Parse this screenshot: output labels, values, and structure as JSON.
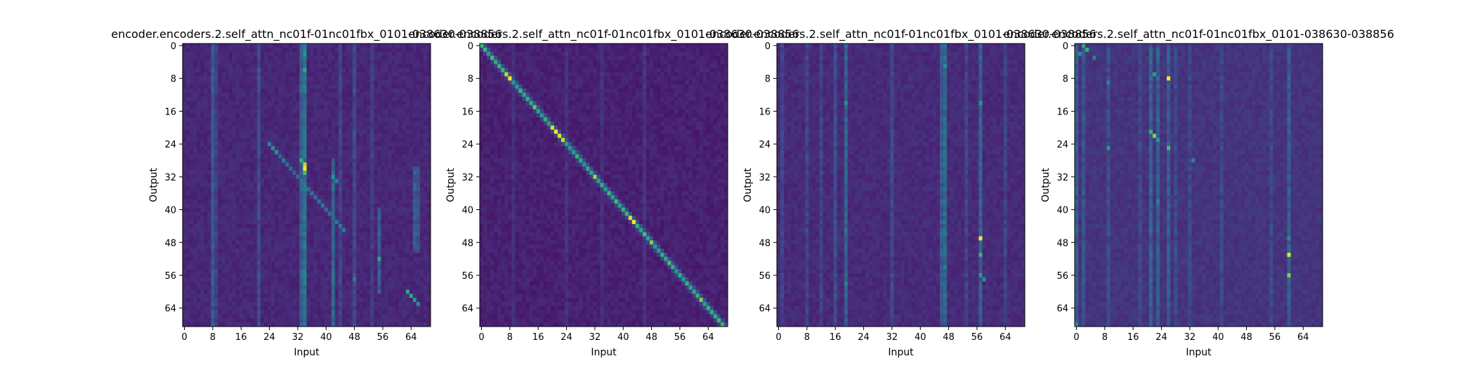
{
  "chart_data": [
    {
      "type": "heatmap",
      "title": "encoder.encoders.2.self_attn_nc01f-01nc01fbx_0101-038630-038856",
      "xlabel": "Input",
      "ylabel": "Output",
      "x_ticks": [
        0,
        8,
        16,
        24,
        32,
        40,
        48,
        56,
        64
      ],
      "y_ticks": [
        0,
        8,
        16,
        24,
        32,
        40,
        48,
        56,
        64
      ],
      "n_input": 70,
      "n_output": 69,
      "colormap": "viridis",
      "value_range": [
        0,
        1
      ],
      "base_level": 0.08,
      "column_bands": [
        {
          "col": 8,
          "from": 0,
          "to": 68,
          "value": 0.28
        },
        {
          "col": 9,
          "from": 0,
          "to": 68,
          "value": 0.18
        },
        {
          "col": 21,
          "from": 0,
          "to": 68,
          "value": 0.24
        },
        {
          "col": 33,
          "from": 0,
          "to": 68,
          "value": 0.32
        },
        {
          "col": 34,
          "from": 0,
          "to": 68,
          "value": 0.42
        },
        {
          "col": 42,
          "from": 28,
          "to": 68,
          "value": 0.34
        },
        {
          "col": 44,
          "from": 0,
          "to": 68,
          "value": 0.2
        },
        {
          "col": 48,
          "from": 0,
          "to": 68,
          "value": 0.22
        },
        {
          "col": 53,
          "from": 0,
          "to": 68,
          "value": 0.18
        },
        {
          "col": 55,
          "from": 40,
          "to": 60,
          "value": 0.3
        },
        {
          "col": 65,
          "from": 30,
          "to": 50,
          "value": 0.3
        },
        {
          "col": 66,
          "from": 30,
          "to": 50,
          "value": 0.26
        }
      ],
      "diagonal_band": {
        "offset": 0,
        "from": 24,
        "to": 45,
        "value": 0.32
      },
      "hotspots": [
        {
          "row": 2,
          "col": 34,
          "value": 0.55
        },
        {
          "row": 6,
          "col": 34,
          "value": 0.6
        },
        {
          "row": 25,
          "col": 25,
          "value": 0.5
        },
        {
          "row": 26,
          "col": 26,
          "value": 0.55
        },
        {
          "row": 28,
          "col": 33,
          "value": 0.65
        },
        {
          "row": 29,
          "col": 34,
          "value": 0.9
        },
        {
          "row": 30,
          "col": 34,
          "value": 1.0
        },
        {
          "row": 31,
          "col": 34,
          "value": 0.7
        },
        {
          "row": 32,
          "col": 42,
          "value": 0.55
        },
        {
          "row": 33,
          "col": 43,
          "value": 0.45
        },
        {
          "row": 52,
          "col": 55,
          "value": 0.6
        },
        {
          "row": 57,
          "col": 48,
          "value": 0.45
        },
        {
          "row": 60,
          "col": 63,
          "value": 0.6
        },
        {
          "row": 61,
          "col": 64,
          "value": 0.6
        },
        {
          "row": 62,
          "col": 65,
          "value": 0.55
        },
        {
          "row": 63,
          "col": 66,
          "value": 0.5
        }
      ]
    },
    {
      "type": "heatmap",
      "title": "encoder.encoders.2.self_attn_nc01f-01nc01fbx_0101-038630-038856",
      "xlabel": "Input",
      "ylabel": "Output",
      "x_ticks": [
        0,
        8,
        16,
        24,
        32,
        40,
        48,
        56,
        64
      ],
      "y_ticks": [
        0,
        8,
        16,
        24,
        32,
        40,
        48,
        56,
        64
      ],
      "n_input": 70,
      "n_output": 69,
      "colormap": "viridis",
      "value_range": [
        0,
        1
      ],
      "base_level": 0.06,
      "column_bands": [
        {
          "col": 9,
          "from": 0,
          "to": 68,
          "value": 0.12
        },
        {
          "col": 24,
          "from": 0,
          "to": 68,
          "value": 0.12
        },
        {
          "col": 34,
          "from": 0,
          "to": 68,
          "value": 0.12
        },
        {
          "col": 46,
          "from": 0,
          "to": 68,
          "value": 0.14
        }
      ],
      "diagonal_band": {
        "offset": 0,
        "from": 0,
        "to": 68,
        "value": 0.55
      },
      "hotspots": [
        {
          "row": 7,
          "col": 7,
          "value": 0.9
        },
        {
          "row": 8,
          "col": 8,
          "value": 1.0
        },
        {
          "row": 15,
          "col": 15,
          "value": 0.75
        },
        {
          "row": 20,
          "col": 20,
          "value": 0.95
        },
        {
          "row": 21,
          "col": 21,
          "value": 1.0
        },
        {
          "row": 22,
          "col": 22,
          "value": 0.95
        },
        {
          "row": 23,
          "col": 23,
          "value": 0.9
        },
        {
          "row": 32,
          "col": 32,
          "value": 0.85
        },
        {
          "row": 42,
          "col": 42,
          "value": 0.95
        },
        {
          "row": 43,
          "col": 43,
          "value": 1.0
        },
        {
          "row": 48,
          "col": 48,
          "value": 0.8
        },
        {
          "row": 53,
          "col": 53,
          "value": 0.7
        },
        {
          "row": 62,
          "col": 62,
          "value": 0.8
        }
      ]
    },
    {
      "type": "heatmap",
      "title": "encoder.encoders.2.self_attn_nc01f-01nc01fbx_0101-038630-038856",
      "xlabel": "Input",
      "ylabel": "Output",
      "x_ticks": [
        0,
        8,
        16,
        24,
        32,
        40,
        48,
        56,
        64
      ],
      "y_ticks": [
        0,
        8,
        16,
        24,
        32,
        40,
        48,
        56,
        64
      ],
      "n_input": 70,
      "n_output": 69,
      "colormap": "viridis",
      "value_range": [
        0,
        1
      ],
      "base_level": 0.09,
      "column_bands": [
        {
          "col": 1,
          "from": 0,
          "to": 68,
          "value": 0.2
        },
        {
          "col": 8,
          "from": 0,
          "to": 68,
          "value": 0.2
        },
        {
          "col": 12,
          "from": 0,
          "to": 68,
          "value": 0.2
        },
        {
          "col": 16,
          "from": 0,
          "to": 68,
          "value": 0.24
        },
        {
          "col": 19,
          "from": 0,
          "to": 68,
          "value": 0.32
        },
        {
          "col": 32,
          "from": 0,
          "to": 68,
          "value": 0.22
        },
        {
          "col": 46,
          "from": 0,
          "to": 68,
          "value": 0.3
        },
        {
          "col": 47,
          "from": 0,
          "to": 68,
          "value": 0.36
        },
        {
          "col": 53,
          "from": 0,
          "to": 68,
          "value": 0.2
        },
        {
          "col": 57,
          "from": 0,
          "to": 68,
          "value": 0.32
        },
        {
          "col": 64,
          "from": 0,
          "to": 68,
          "value": 0.2
        }
      ],
      "diagonal_band": null,
      "hotspots": [
        {
          "row": 5,
          "col": 47,
          "value": 0.5
        },
        {
          "row": 14,
          "col": 19,
          "value": 0.5
        },
        {
          "row": 14,
          "col": 57,
          "value": 0.55
        },
        {
          "row": 47,
          "col": 57,
          "value": 1.0
        },
        {
          "row": 51,
          "col": 57,
          "value": 0.65
        },
        {
          "row": 56,
          "col": 57,
          "value": 0.55
        },
        {
          "row": 57,
          "col": 58,
          "value": 0.5
        },
        {
          "row": 58,
          "col": 19,
          "value": 0.45
        },
        {
          "row": 54,
          "col": 47,
          "value": 0.45
        }
      ]
    },
    {
      "type": "heatmap",
      "title": "encoder.encoders.2.self_attn_nc01f-01nc01fbx_0101-038630-038856",
      "xlabel": "Input",
      "ylabel": "Output",
      "x_ticks": [
        0,
        8,
        16,
        24,
        32,
        40,
        48,
        56,
        64
      ],
      "y_ticks": [
        0,
        8,
        16,
        24,
        32,
        40,
        48,
        56,
        64
      ],
      "n_input": 70,
      "n_output": 69,
      "colormap": "viridis",
      "value_range": [
        0,
        1
      ],
      "base_level": 0.12,
      "column_bands": [
        {
          "col": 0,
          "from": 0,
          "to": 68,
          "value": 0.3
        },
        {
          "col": 2,
          "from": 0,
          "to": 68,
          "value": 0.26
        },
        {
          "col": 9,
          "from": 0,
          "to": 68,
          "value": 0.24
        },
        {
          "col": 18,
          "from": 0,
          "to": 68,
          "value": 0.22
        },
        {
          "col": 21,
          "from": 0,
          "to": 68,
          "value": 0.32
        },
        {
          "col": 23,
          "from": 0,
          "to": 68,
          "value": 0.3
        },
        {
          "col": 26,
          "from": 0,
          "to": 68,
          "value": 0.3
        },
        {
          "col": 28,
          "from": 0,
          "to": 68,
          "value": 0.22
        },
        {
          "col": 32,
          "from": 0,
          "to": 68,
          "value": 0.22
        },
        {
          "col": 41,
          "from": 0,
          "to": 68,
          "value": 0.22
        },
        {
          "col": 55,
          "from": 0,
          "to": 68,
          "value": 0.22
        },
        {
          "col": 60,
          "from": 0,
          "to": 68,
          "value": 0.3
        }
      ],
      "diagonal_band": null,
      "hotspots": [
        {
          "row": 0,
          "col": 2,
          "value": 0.6
        },
        {
          "row": 1,
          "col": 3,
          "value": 0.65
        },
        {
          "row": 2,
          "col": 1,
          "value": 0.5
        },
        {
          "row": 3,
          "col": 5,
          "value": 0.45
        },
        {
          "row": 7,
          "col": 22,
          "value": 0.55
        },
        {
          "row": 8,
          "col": 26,
          "value": 1.0
        },
        {
          "row": 9,
          "col": 9,
          "value": 0.45
        },
        {
          "row": 21,
          "col": 21,
          "value": 0.65
        },
        {
          "row": 22,
          "col": 22,
          "value": 0.8
        },
        {
          "row": 23,
          "col": 23,
          "value": 0.55
        },
        {
          "row": 25,
          "col": 9,
          "value": 0.55
        },
        {
          "row": 25,
          "col": 26,
          "value": 0.7
        },
        {
          "row": 28,
          "col": 33,
          "value": 0.45
        },
        {
          "row": 38,
          "col": 23,
          "value": 0.45
        },
        {
          "row": 47,
          "col": 60,
          "value": 0.5
        },
        {
          "row": 51,
          "col": 60,
          "value": 0.95
        },
        {
          "row": 56,
          "col": 60,
          "value": 0.8
        },
        {
          "row": 68,
          "col": 0,
          "value": 0.5
        }
      ]
    }
  ]
}
